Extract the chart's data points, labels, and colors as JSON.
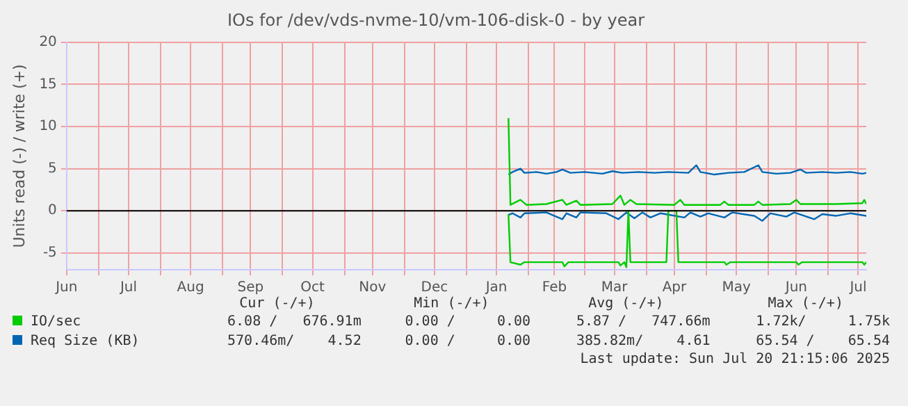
{
  "chart_data": {
    "type": "line",
    "title": "IOs for /dev/vds-nvme-10/vm-106-disk-0 - by year",
    "ylabel": "Units read (-) / write (+)",
    "xlim": [
      "2024-06-15",
      "2025-07-20"
    ],
    "xticks": [
      {
        "value": "2024-06-15",
        "label": "Jun"
      },
      {
        "value": "2024-07-01",
        "label": null
      },
      {
        "value": "2024-07-16",
        "label": "Jul"
      },
      {
        "value": "2024-08-01",
        "label": null
      },
      {
        "value": "2024-08-16",
        "label": "Aug"
      },
      {
        "value": "2024-09-01",
        "label": null
      },
      {
        "value": "2024-09-15",
        "label": "Sep"
      },
      {
        "value": "2024-10-01",
        "label": null
      },
      {
        "value": "2024-10-16",
        "label": "Oct"
      },
      {
        "value": "2024-11-01",
        "label": null
      },
      {
        "value": "2024-11-15",
        "label": "Nov"
      },
      {
        "value": "2024-12-01",
        "label": null
      },
      {
        "value": "2024-12-16",
        "label": "Dec"
      },
      {
        "value": "2025-01-01",
        "label": null
      },
      {
        "value": "2025-01-16",
        "label": "Jan"
      },
      {
        "value": "2025-02-01",
        "label": null
      },
      {
        "value": "2025-02-14",
        "label": "Feb"
      },
      {
        "value": "2025-03-01",
        "label": null
      },
      {
        "value": "2025-03-16",
        "label": "Mar"
      },
      {
        "value": "2025-04-01",
        "label": null
      },
      {
        "value": "2025-04-15",
        "label": "Apr"
      },
      {
        "value": "2025-05-01",
        "label": null
      },
      {
        "value": "2025-05-16",
        "label": "May"
      },
      {
        "value": "2025-06-01",
        "label": null
      },
      {
        "value": "2025-06-15",
        "label": "Jun"
      },
      {
        "value": "2025-07-01",
        "label": null
      },
      {
        "value": "2025-07-16",
        "label": "Jul"
      }
    ],
    "ylim": [
      -7,
      20
    ],
    "yticks": [
      -5,
      0,
      5,
      10,
      15,
      20
    ],
    "grid": true,
    "legend": "bottom",
    "ref_lines": [
      {
        "axis": "y",
        "value": 0,
        "color": "#000000"
      }
    ],
    "series": [
      {
        "name": "IO/sec",
        "color": "#00cc00",
        "x": [
          "2025-01-22",
          "2025-01-23",
          "2025-01-28",
          "2025-01-31",
          "2025-02-10",
          "2025-02-18",
          "2025-02-20",
          "2025-02-25",
          "2025-02-27",
          "2025-03-15",
          "2025-03-19",
          "2025-03-21",
          "2025-03-24",
          "2025-03-27",
          "2025-04-15",
          "2025-04-18",
          "2025-04-20",
          "2025-05-08",
          "2025-05-10",
          "2025-05-12",
          "2025-05-25",
          "2025-05-27",
          "2025-05-29",
          "2025-06-12",
          "2025-06-15",
          "2025-06-17",
          "2025-07-05",
          "2025-07-18",
          "2025-07-19",
          "2025-07-20"
        ],
        "values": [
          11,
          0.7,
          1.3,
          0.7,
          0.8,
          1.3,
          0.7,
          1.2,
          0.7,
          0.8,
          1.8,
          0.7,
          1.3,
          0.8,
          0.7,
          1.3,
          0.7,
          0.7,
          1.1,
          0.7,
          0.7,
          1.1,
          0.7,
          0.8,
          1.3,
          0.8,
          0.8,
          0.9,
          1.3,
          0.8
        ]
      },
      {
        "color": "#00cc00",
        "x": [
          "2025-01-22",
          "2025-01-23",
          "2025-01-28",
          "2025-01-30",
          "2025-02-18",
          "2025-02-19",
          "2025-02-21",
          "2025-03-18",
          "2025-03-19",
          "2025-03-21",
          "2025-03-22",
          "2025-03-23",
          "2025-03-24",
          "2025-04-11",
          "2025-04-12",
          "2025-04-16",
          "2025-04-17",
          "2025-05-10",
          "2025-05-11",
          "2025-05-13",
          "2025-06-15",
          "2025-06-16",
          "2025-06-18",
          "2025-07-18",
          "2025-07-19",
          "2025-07-20"
        ],
        "values": [
          -0.4,
          -6.1,
          -6.4,
          -6.1,
          -6.1,
          -6.6,
          -6.1,
          -6.1,
          -6.5,
          -6.1,
          -6.7,
          0,
          -6.1,
          -6.1,
          0,
          0,
          -6.1,
          -6.1,
          -6.4,
          -6.1,
          -6.1,
          -6.4,
          -6.1,
          -6.1,
          -6.4,
          -6.1
        ]
      },
      {
        "name": "Req Size (KB)",
        "color": "#0066b3",
        "x": [
          "2025-01-22",
          "2025-01-24",
          "2025-01-28",
          "2025-01-30",
          "2025-02-05",
          "2025-02-10",
          "2025-02-15",
          "2025-02-18",
          "2025-02-22",
          "2025-03-01",
          "2025-03-10",
          "2025-03-15",
          "2025-03-20",
          "2025-03-28",
          "2025-04-05",
          "2025-04-12",
          "2025-04-22",
          "2025-04-26",
          "2025-04-28",
          "2025-05-05",
          "2025-05-12",
          "2025-05-20",
          "2025-05-27",
          "2025-05-29",
          "2025-06-05",
          "2025-06-12",
          "2025-06-17",
          "2025-06-20",
          "2025-06-28",
          "2025-07-05",
          "2025-07-12",
          "2025-07-18",
          "2025-07-20"
        ],
        "values": [
          4.3,
          4.6,
          5.0,
          4.5,
          4.6,
          4.4,
          4.6,
          4.9,
          4.5,
          4.6,
          4.4,
          4.7,
          4.5,
          4.6,
          4.5,
          4.6,
          4.5,
          5.4,
          4.6,
          4.3,
          4.5,
          4.6,
          5.4,
          4.6,
          4.4,
          4.5,
          4.9,
          4.5,
          4.6,
          4.5,
          4.6,
          4.4,
          4.5
        ]
      },
      {
        "color": "#0066b3",
        "x": [
          "2025-01-22",
          "2025-01-24",
          "2025-01-28",
          "2025-01-30",
          "2025-02-10",
          "2025-02-18",
          "2025-02-20",
          "2025-02-25",
          "2025-02-27",
          "2025-03-12",
          "2025-03-18",
          "2025-03-22",
          "2025-03-26",
          "2025-03-30",
          "2025-04-03",
          "2025-04-08",
          "2025-04-20",
          "2025-04-23",
          "2025-04-28",
          "2025-05-02",
          "2025-05-10",
          "2025-05-14",
          "2025-05-25",
          "2025-05-29",
          "2025-06-02",
          "2025-06-10",
          "2025-06-14",
          "2025-06-24",
          "2025-06-28",
          "2025-07-05",
          "2025-07-12",
          "2025-07-20"
        ],
        "values": [
          -0.5,
          -0.3,
          -0.8,
          -0.3,
          -0.2,
          -1.0,
          -0.3,
          -0.8,
          -0.2,
          -0.3,
          -1.0,
          -0.2,
          -0.9,
          -0.2,
          -0.8,
          -0.3,
          -0.8,
          -0.2,
          -0.7,
          -0.3,
          -0.8,
          -0.2,
          -0.6,
          -1.2,
          -0.3,
          -0.7,
          -0.2,
          -1.0,
          -0.4,
          -0.6,
          -0.3,
          -0.6
        ]
      }
    ],
    "annotations": [
      "Cur (-/+)",
      "Min (-/+)",
      "Avg (-/+)",
      "Max (-/+)",
      "6.08 /   676.91m",
      "0.00 /     0.00",
      "5.87 /   747.66m",
      "1.72k/     1.75k",
      "570.46m/    4.52",
      "0.00 /     0.00",
      "385.82m/    4.61",
      "65.54 /    65.54",
      "Last update: Sun Jul 20 21:15:06 2025"
    ]
  }
}
